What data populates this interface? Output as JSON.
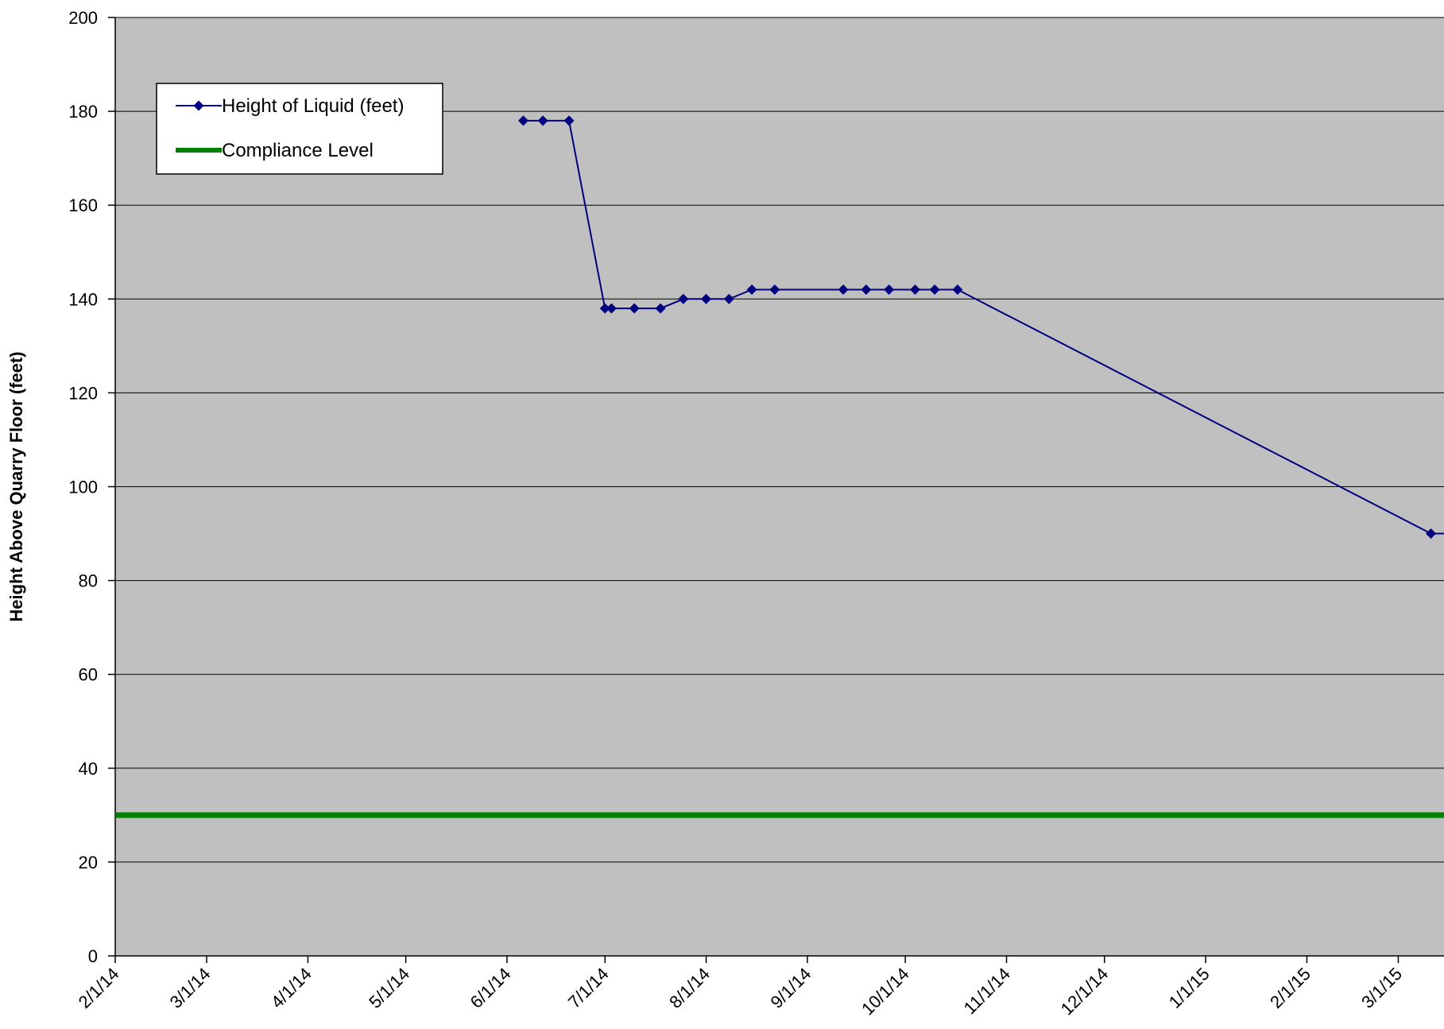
{
  "chart_data": {
    "type": "line",
    "title": "",
    "xlabel": "",
    "ylabel": "Height Above Quarry Floor (feet)",
    "ylim": [
      0,
      200
    ],
    "yticks": [
      0,
      20,
      40,
      60,
      80,
      100,
      120,
      140,
      160,
      180,
      200
    ],
    "xlim": [
      "2014-02-01",
      "2015-03-15"
    ],
    "xticks": [
      {
        "date": "2014-02-01",
        "label": "2/1/14"
      },
      {
        "date": "2014-03-01",
        "label": "3/1/14"
      },
      {
        "date": "2014-04-01",
        "label": "4/1/14"
      },
      {
        "date": "2014-05-01",
        "label": "5/1/14"
      },
      {
        "date": "2014-06-01",
        "label": "6/1/14"
      },
      {
        "date": "2014-07-01",
        "label": "7/1/14"
      },
      {
        "date": "2014-08-01",
        "label": "8/1/14"
      },
      {
        "date": "2014-09-01",
        "label": "9/1/14"
      },
      {
        "date": "2014-10-01",
        "label": "10/1/14"
      },
      {
        "date": "2014-11-01",
        "label": "11/1/14"
      },
      {
        "date": "2014-12-01",
        "label": "12/1/14"
      },
      {
        "date": "2015-01-01",
        "label": "1/1/15"
      },
      {
        "date": "2015-02-01",
        "label": "2/1/15"
      },
      {
        "date": "2015-03-01",
        "label": "3/1/15"
      }
    ],
    "grid": "horizontal",
    "background": "#c0c0c0",
    "legend_position": "top-left",
    "series": [
      {
        "name": "Height of Liquid (feet)",
        "color": "#000080",
        "marker": "diamond",
        "x": [
          "2014-06-06",
          "2014-06-12",
          "2014-06-20",
          "2014-07-01",
          "2014-07-03",
          "2014-07-10",
          "2014-07-18",
          "2014-07-25",
          "2014-08-01",
          "2014-08-08",
          "2014-08-15",
          "2014-08-22",
          "2014-09-12",
          "2014-09-19",
          "2014-09-26",
          "2014-10-04",
          "2014-10-10",
          "2014-10-17",
          "2015-03-11"
        ],
        "y": [
          178,
          178,
          178,
          138,
          138,
          138,
          138,
          140,
          140,
          140,
          142,
          142,
          142,
          142,
          142,
          142,
          142,
          142,
          90
        ]
      },
      {
        "name": "Compliance Level",
        "color": "#008000",
        "marker": "none",
        "constant": 30
      }
    ]
  }
}
